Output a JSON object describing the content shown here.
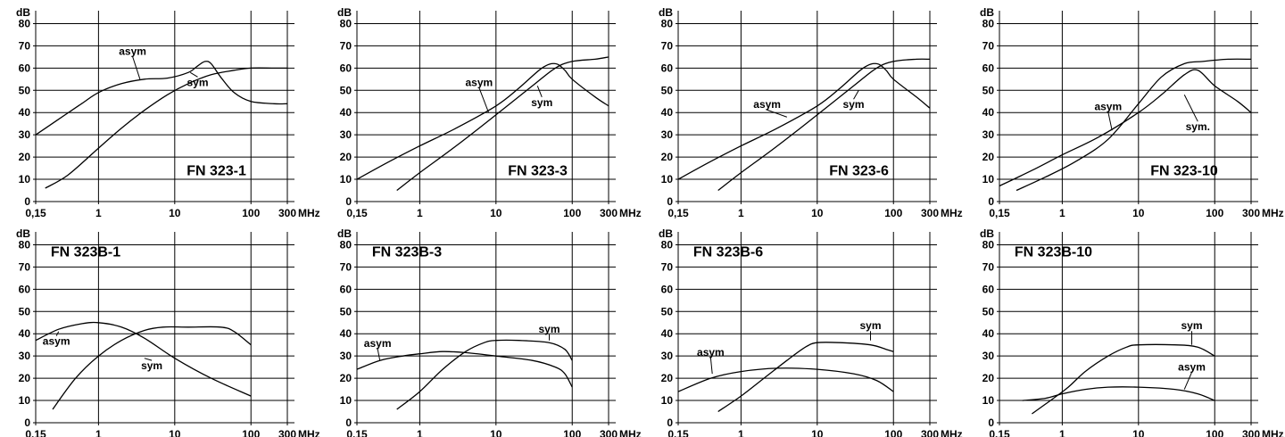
{
  "chart_data": [
    {
      "type": "line",
      "title": "FN 323-1",
      "ylabel": "dB",
      "xunit": "MHz",
      "xscale": "log",
      "grid": true,
      "ylim": [
        0,
        85
      ],
      "yticks": [
        "0",
        "10",
        "20",
        "30",
        "40",
        "50",
        "60",
        "70",
        "80"
      ],
      "xticks": [
        {
          "v": 0.15,
          "label": "0,15"
        },
        {
          "v": 1,
          "label": "1"
        },
        {
          "v": 10,
          "label": "10"
        },
        {
          "v": 100,
          "label": "100"
        },
        {
          "v": 300,
          "label": "300"
        }
      ],
      "series": [
        {
          "name": "asym",
          "label_at": [
            2.8,
            66
          ],
          "leader_to": [
            3.5,
            55
          ],
          "x": [
            0.15,
            0.3,
            0.6,
            1,
            2,
            4,
            8,
            15,
            20,
            25,
            30,
            40,
            60,
            100,
            200,
            300
          ],
          "y": [
            30,
            37,
            44,
            49,
            53,
            55,
            55.5,
            58,
            61,
            63,
            62,
            56,
            49,
            45,
            44,
            44
          ]
        },
        {
          "name": "sym",
          "label_at": [
            20,
            52
          ],
          "leader_to": [
            16,
            58
          ],
          "x": [
            0.2,
            0.4,
            1,
            2,
            4,
            8,
            15,
            30,
            60,
            100,
            200,
            300
          ],
          "y": [
            6,
            12,
            24,
            33,
            41,
            48,
            53,
            57,
            59,
            60,
            60,
            60
          ]
        }
      ]
    },
    {
      "type": "line",
      "title": "FN 323-3",
      "ylabel": "dB",
      "xunit": "MHz",
      "xscale": "log",
      "grid": true,
      "ylim": [
        0,
        85
      ],
      "yticks": [
        "0",
        "10",
        "20",
        "30",
        "40",
        "50",
        "60",
        "70",
        "80"
      ],
      "xticks": [
        {
          "v": 0.15,
          "label": "0,15"
        },
        {
          "v": 1,
          "label": "1"
        },
        {
          "v": 10,
          "label": "10"
        },
        {
          "v": 100,
          "label": "100"
        },
        {
          "v": 300,
          "label": "300"
        }
      ],
      "series": [
        {
          "name": "asym",
          "label_at": [
            6,
            52
          ],
          "leader_to": [
            8,
            40
          ],
          "x": [
            0.15,
            0.4,
            1,
            3,
            10,
            20,
            40,
            60,
            80,
            100,
            200,
            300
          ],
          "y": [
            10,
            18,
            25,
            33,
            43,
            51,
            60,
            62,
            59,
            55,
            47,
            43
          ]
        },
        {
          "name": "sym",
          "label_at": [
            40,
            43
          ],
          "leader_to": [
            35,
            52
          ],
          "x": [
            0.5,
            1,
            3,
            10,
            30,
            60,
            100,
            200,
            300
          ],
          "y": [
            5,
            13,
            25,
            39,
            52,
            60,
            63,
            64,
            65
          ]
        }
      ]
    },
    {
      "type": "line",
      "title": "FN 323-6",
      "ylabel": "dB",
      "xunit": "MHz",
      "xscale": "log",
      "grid": true,
      "ylim": [
        0,
        85
      ],
      "yticks": [
        "0",
        "10",
        "20",
        "30",
        "40",
        "50",
        "60",
        "70",
        "80"
      ],
      "xticks": [
        {
          "v": 0.15,
          "label": "0,15"
        },
        {
          "v": 1,
          "label": "1"
        },
        {
          "v": 10,
          "label": "10"
        },
        {
          "v": 100,
          "label": "100"
        },
        {
          "v": 300,
          "label": "300"
        }
      ],
      "series": [
        {
          "name": "asym",
          "label_at": [
            2.2,
            42
          ],
          "leader_to": [
            4,
            38
          ],
          "x": [
            0.15,
            0.4,
            1,
            3,
            10,
            20,
            40,
            60,
            80,
            100,
            200,
            300
          ],
          "y": [
            10,
            18,
            25,
            33,
            43,
            51,
            60,
            62,
            59,
            55,
            47,
            42
          ]
        },
        {
          "name": "sym",
          "label_at": [
            30,
            42
          ],
          "leader_to": [
            35,
            50
          ],
          "x": [
            0.5,
            1,
            3,
            10,
            30,
            60,
            100,
            200,
            300
          ],
          "y": [
            5,
            13,
            25,
            39,
            52,
            60,
            63,
            64,
            64
          ]
        }
      ]
    },
    {
      "type": "line",
      "title": "FN 323-10",
      "ylabel": "dB",
      "xunit": "MHz",
      "xscale": "log",
      "grid": true,
      "ylim": [
        0,
        85
      ],
      "yticks": [
        "0",
        "10",
        "20",
        "30",
        "40",
        "50",
        "60",
        "70",
        "80"
      ],
      "xticks": [
        {
          "v": 0.15,
          "label": "0,15"
        },
        {
          "v": 1,
          "label": "1"
        },
        {
          "v": 10,
          "label": "10"
        },
        {
          "v": 100,
          "label": "100"
        },
        {
          "v": 300,
          "label": "300"
        }
      ],
      "series": [
        {
          "name": "asym",
          "label_at": [
            4,
            41
          ],
          "leader_to": [
            4.5,
            32
          ],
          "x": [
            0.15,
            0.4,
            1,
            3,
            10,
            20,
            40,
            60,
            100,
            200,
            300
          ],
          "y": [
            7,
            14,
            21,
            29,
            40,
            48,
            57,
            59,
            52,
            45,
            40
          ]
        },
        {
          "name": "sym.",
          "label_at": [
            60,
            32
          ],
          "leader_to": [
            40,
            48
          ],
          "x": [
            0.25,
            0.6,
            1.5,
            4,
            10,
            20,
            40,
            70,
            150,
            300
          ],
          "y": [
            5,
            11,
            18,
            28,
            44,
            56,
            62,
            63,
            64,
            64
          ]
        }
      ]
    },
    {
      "type": "line",
      "title": "FN 323B-1",
      "ylabel": "dB",
      "xunit": "MHz",
      "xscale": "log",
      "grid": true,
      "ylim": [
        0,
        85
      ],
      "yticks": [
        "0",
        "10",
        "20",
        "30",
        "40",
        "50",
        "60",
        "70",
        "80"
      ],
      "xticks": [
        {
          "v": 0.15,
          "label": "0.15"
        },
        {
          "v": 1,
          "label": "1"
        },
        {
          "v": 10,
          "label": "10"
        },
        {
          "v": 100,
          "label": "100"
        },
        {
          "v": 300,
          "label": "300"
        }
      ],
      "series": [
        {
          "name": "asym",
          "label_at": [
            0.28,
            35
          ],
          "leader_to": [
            0.3,
            41
          ],
          "x": [
            0.15,
            0.3,
            0.6,
            1,
            2,
            4,
            10,
            30,
            100
          ],
          "y": [
            37,
            42,
            44.5,
            45,
            43,
            38,
            29,
            20,
            12
          ]
        },
        {
          "name": "sym",
          "label_at": [
            5,
            24
          ],
          "leader_to": [
            4,
            29
          ],
          "x": [
            0.25,
            0.5,
            1,
            2,
            4,
            7,
            15,
            40,
            60,
            100
          ],
          "y": [
            6,
            20,
            30,
            37,
            41.5,
            43,
            43,
            43,
            41,
            35
          ]
        }
      ]
    },
    {
      "type": "line",
      "title": "FN 323B-3",
      "ylabel": "dB",
      "xunit": "MHz",
      "xscale": "log",
      "grid": true,
      "ylim": [
        0,
        85
      ],
      "yticks": [
        "0",
        "10",
        "20",
        "30",
        "40",
        "50",
        "60",
        "70",
        "80"
      ],
      "xticks": [
        {
          "v": 0.15,
          "label": "0,15"
        },
        {
          "v": 1,
          "label": "1"
        },
        {
          "v": 10,
          "label": "10"
        },
        {
          "v": 100,
          "label": "100"
        },
        {
          "v": 300,
          "label": "300"
        }
      ],
      "series": [
        {
          "name": "asym",
          "label_at": [
            0.28,
            34
          ],
          "leader_to": [
            0.3,
            28
          ],
          "x": [
            0.15,
            0.3,
            0.6,
            1,
            2,
            4,
            10,
            30,
            60,
            80,
            100
          ],
          "y": [
            24,
            28,
            30,
            31,
            32,
            31.5,
            30,
            28,
            25,
            22,
            16
          ]
        },
        {
          "name": "sym",
          "label_at": [
            50,
            40.5
          ],
          "leader_to": [
            50,
            37
          ],
          "x": [
            0.5,
            1,
            2,
            4,
            7,
            10,
            20,
            50,
            80,
            100
          ],
          "y": [
            6,
            14,
            24,
            32,
            36,
            37,
            37,
            36,
            33,
            28
          ]
        }
      ]
    },
    {
      "type": "line",
      "title": "FN 323B-6",
      "ylabel": "dB",
      "xunit": "MHz",
      "xscale": "log",
      "grid": true,
      "ylim": [
        0,
        85
      ],
      "yticks": [
        "0",
        "10",
        "20",
        "30",
        "40",
        "50",
        "60",
        "70",
        "80"
      ],
      "xticks": [
        {
          "v": 0.15,
          "label": "0,15"
        },
        {
          "v": 1,
          "label": "1"
        },
        {
          "v": 10,
          "label": "10"
        },
        {
          "v": 100,
          "label": "100"
        },
        {
          "v": 300,
          "label": "300"
        }
      ],
      "series": [
        {
          "name": "asym",
          "label_at": [
            0.4,
            30
          ],
          "leader_to": [
            0.42,
            22
          ],
          "x": [
            0.15,
            0.4,
            1,
            3,
            10,
            30,
            60,
            100
          ],
          "y": [
            14,
            20,
            23,
            24.5,
            24,
            22,
            19,
            14
          ]
        },
        {
          "name": "sym",
          "label_at": [
            50,
            42
          ],
          "leader_to": [
            50,
            37
          ],
          "x": [
            0.5,
            1,
            2,
            4,
            7,
            10,
            20,
            50,
            80,
            100
          ],
          "y": [
            5,
            12,
            20,
            28,
            34,
            36,
            36,
            35,
            33,
            32
          ]
        }
      ]
    },
    {
      "type": "line",
      "title": "FN 323B-10",
      "ylabel": "dB",
      "xunit": "MHz",
      "xscale": "log",
      "grid": true,
      "ylim": [
        0,
        85
      ],
      "yticks": [
        "0",
        "10",
        "20",
        "30",
        "40",
        "50",
        "60",
        "70",
        "80"
      ],
      "xticks": [
        {
          "v": 0.15,
          "label": "0.15"
        },
        {
          "v": 1,
          "label": "1"
        },
        {
          "v": 10,
          "label": "10"
        },
        {
          "v": 100,
          "label": "100"
        },
        {
          "v": 300,
          "label": "300"
        }
      ],
      "series": [
        {
          "name": "asym",
          "label_at": [
            50,
            23.5
          ],
          "leader_to": [
            40,
            15
          ],
          "x": [
            0.3,
            0.6,
            1,
            2,
            4,
            10,
            30,
            60,
            100
          ],
          "y": [
            10,
            11,
            13,
            15,
            16,
            16,
            15,
            13,
            10
          ]
        },
        {
          "name": "sym",
          "label_at": [
            50,
            42
          ],
          "leader_to": [
            50,
            35
          ],
          "x": [
            0.4,
            0.7,
            1.2,
            2,
            4,
            7,
            10,
            30,
            60,
            100
          ],
          "y": [
            4,
            10,
            16,
            23,
            30,
            34,
            35,
            35,
            34,
            30
          ]
        }
      ]
    }
  ]
}
